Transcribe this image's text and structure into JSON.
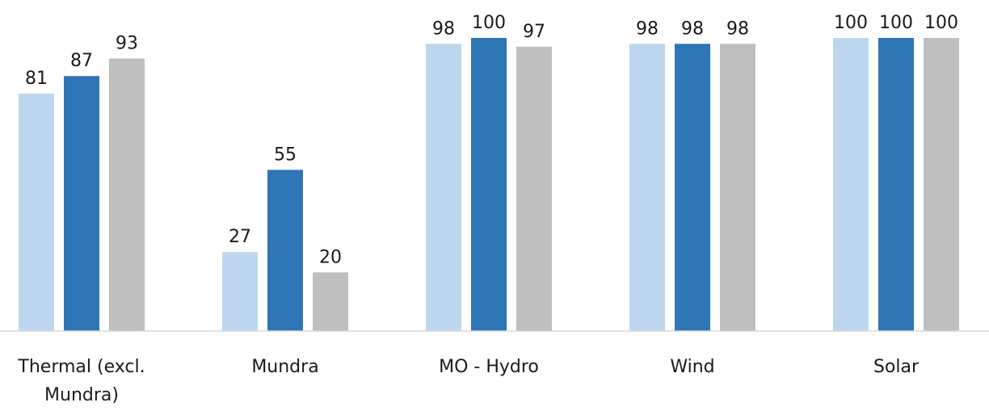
{
  "chart_data": {
    "type": "bar",
    "categories": [
      [
        "Thermal (excl.",
        "Mundra)"
      ],
      [
        "Mundra"
      ],
      [
        "MO - Hydro"
      ],
      [
        "Wind"
      ],
      [
        "Solar"
      ]
    ],
    "series": [
      {
        "color": "#bdd7ee",
        "values": [
          81,
          27,
          98,
          98,
          100
        ]
      },
      {
        "color": "#2e75b6",
        "values": [
          87,
          55,
          100,
          98,
          100
        ]
      },
      {
        "color": "#bfbfbf",
        "values": [
          93,
          20,
          97,
          98,
          100
        ]
      }
    ],
    "ylim": [
      0,
      100
    ],
    "grid": false,
    "legend": "none",
    "axis_color": "#d9d9d9"
  }
}
